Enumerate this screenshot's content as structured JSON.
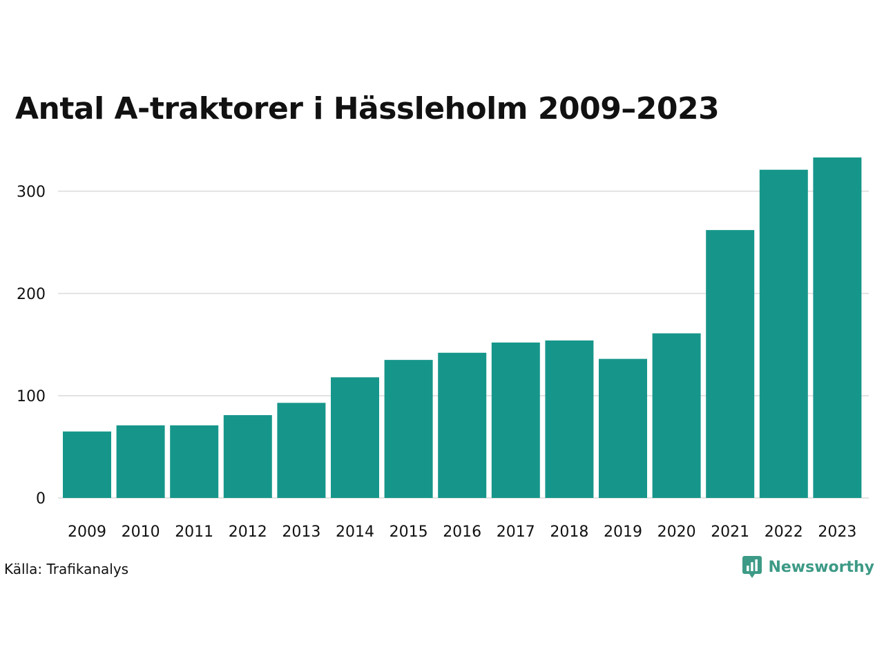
{
  "chart_data": {
    "type": "bar",
    "title": "Antal A-traktorer i Hässleholm 2009–2023",
    "categories": [
      "2009",
      "2010",
      "2011",
      "2012",
      "2013",
      "2014",
      "2015",
      "2016",
      "2017",
      "2018",
      "2019",
      "2020",
      "2021",
      "2022",
      "2023"
    ],
    "values": [
      65,
      71,
      71,
      81,
      93,
      118,
      135,
      142,
      152,
      154,
      136,
      161,
      262,
      321,
      333
    ],
    "xlabel": "",
    "ylabel": "",
    "ylim": [
      0,
      333
    ],
    "yticks": [
      0,
      100,
      200,
      300
    ],
    "ytick_labels": [
      "0",
      "100",
      "200",
      "300"
    ],
    "grid": true,
    "bar_color": "#16968a",
    "grid_color": "#e3e3e3"
  },
  "footer": {
    "source": "Källa: Trafikanalys",
    "brand": "Newsworthy"
  },
  "colors": {
    "brand": "#3d9a86"
  }
}
